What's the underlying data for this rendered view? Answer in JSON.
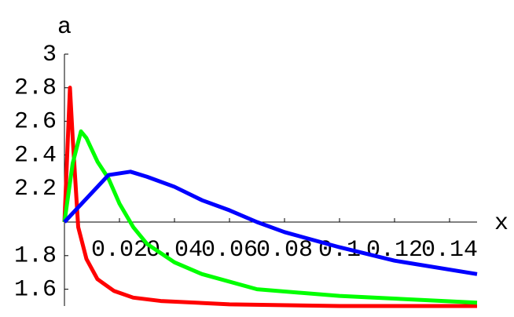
{
  "chart_data": {
    "type": "line",
    "xlabel": "x",
    "ylabel": "a",
    "xlim": [
      0,
      0.15
    ],
    "ylim": [
      1.5,
      3
    ],
    "y_axis_crossing": 2,
    "xticks": [
      0.02,
      0.04,
      0.06,
      0.08,
      0.1,
      0.12,
      0.14
    ],
    "yticks": [
      1.6,
      1.8,
      2.2,
      2.4,
      2.6,
      2.8,
      3
    ],
    "series": [
      {
        "color": "#ff0000",
        "x": [
          0,
          0.002,
          0.003,
          0.005,
          0.008,
          0.012,
          0.018,
          0.025,
          0.035,
          0.06,
          0.1,
          0.15
        ],
        "values": [
          2,
          2.8,
          2.5,
          1.97,
          1.78,
          1.66,
          1.59,
          1.55,
          1.53,
          1.51,
          1.5,
          1.5
        ]
      },
      {
        "color": "#00ff00",
        "x": [
          0,
          0.003,
          0.006,
          0.008,
          0.012,
          0.016,
          0.02,
          0.025,
          0.03,
          0.04,
          0.05,
          0.07,
          0.1,
          0.15
        ],
        "values": [
          2,
          2.35,
          2.54,
          2.5,
          2.36,
          2.26,
          2.11,
          1.97,
          1.87,
          1.76,
          1.69,
          1.6,
          1.56,
          1.52
        ]
      },
      {
        "color": "#0000ff",
        "x": [
          0,
          0.008,
          0.016,
          0.024,
          0.03,
          0.04,
          0.05,
          0.06,
          0.07,
          0.08,
          0.1,
          0.12,
          0.15
        ],
        "values": [
          2,
          2.14,
          2.28,
          2.3,
          2.27,
          2.21,
          2.13,
          2.07,
          2.0,
          1.94,
          1.85,
          1.77,
          1.69
        ]
      }
    ]
  }
}
